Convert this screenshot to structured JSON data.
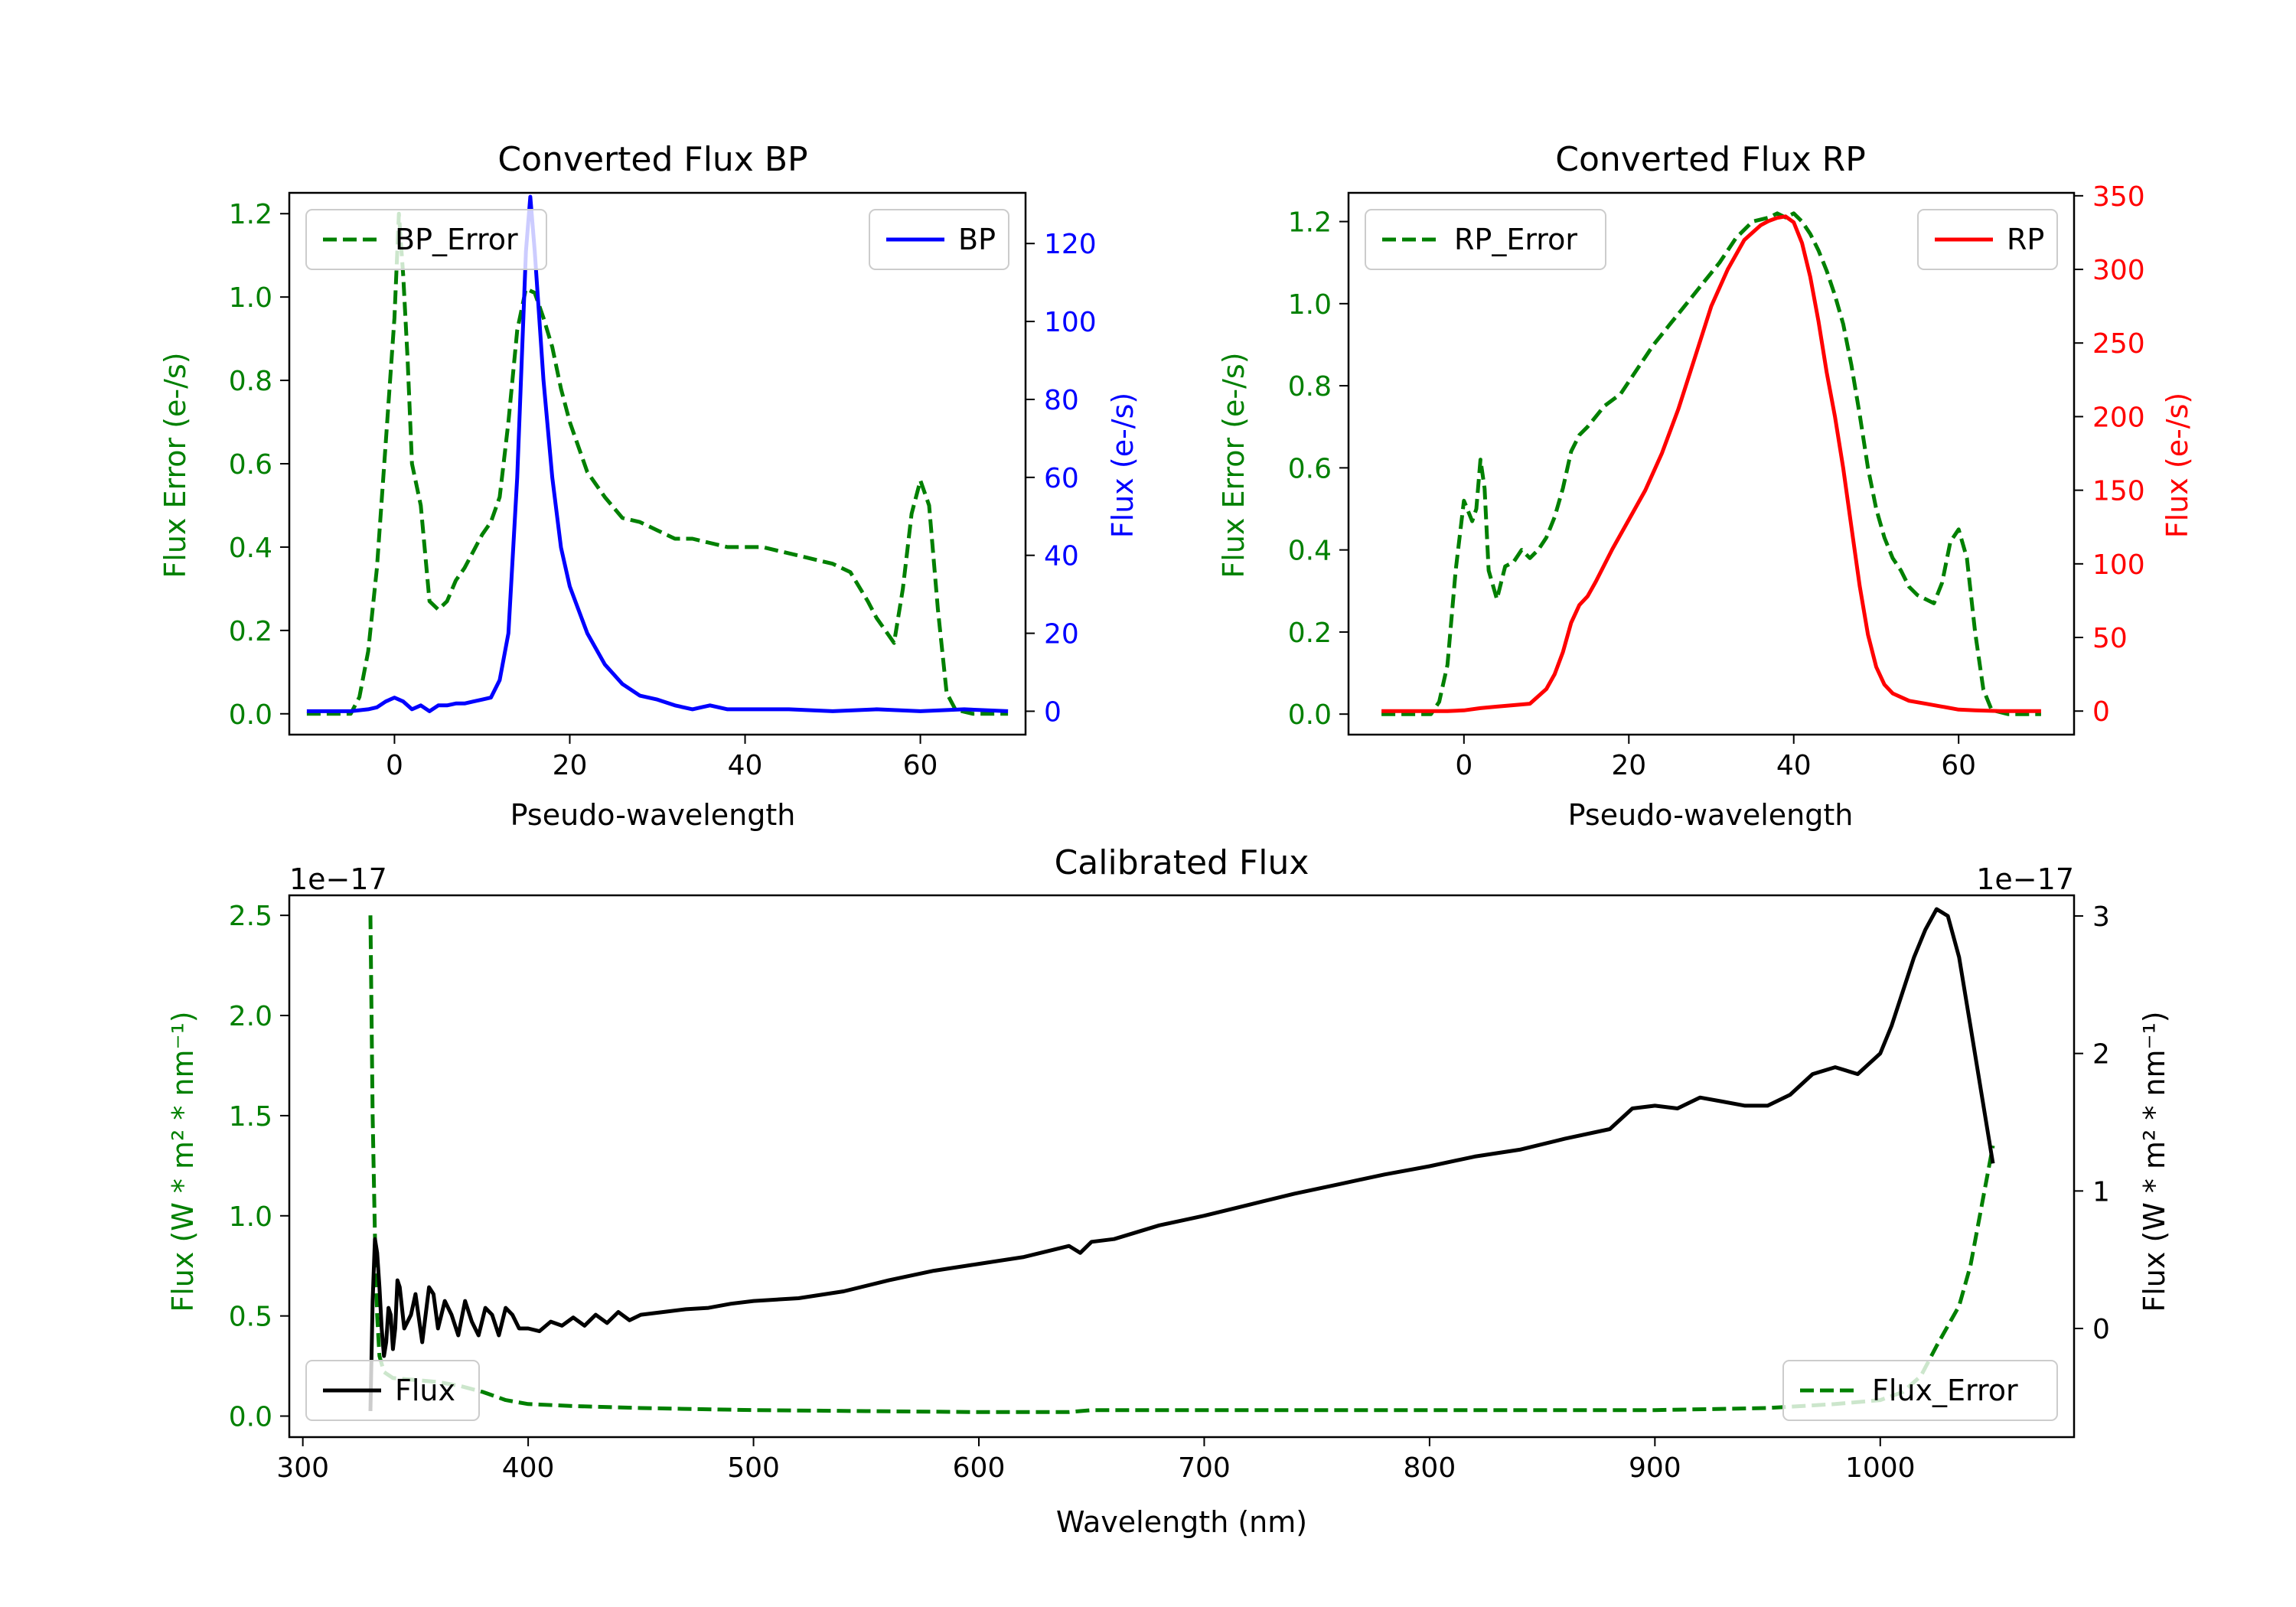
{
  "colors": {
    "green": "#008000",
    "blue": "#0000ff",
    "red": "#ff0000",
    "black": "#000000"
  },
  "chart_data": [
    {
      "type": "line",
      "title": "Converted Flux BP",
      "xlabel": "Pseudo-wavelength",
      "ylabel_left": "Flux Error (e-/s)",
      "ylabel_right": "Flux (e-/s)",
      "xlim": [
        -12,
        72
      ],
      "ylim_left": [
        -0.05,
        1.25
      ],
      "ylim_right": [
        -6,
        133
      ],
      "xticks": [
        "0",
        "20",
        "40",
        "60"
      ],
      "yticks_left": [
        "0.0",
        "0.2",
        "0.4",
        "0.6",
        "0.8",
        "1.0",
        "1.2"
      ],
      "yticks_right": [
        "0",
        "20",
        "40",
        "60",
        "80",
        "100",
        "120"
      ],
      "series": [
        {
          "name": "BP_Error",
          "axis": "left",
          "style": "dashed",
          "color": "#008000",
          "x": [
            -10,
            -5,
            -4,
            -3,
            -2,
            -1,
            0,
            0.5,
            1,
            1.5,
            2,
            3,
            4,
            5,
            6,
            7,
            8,
            9,
            10,
            11,
            12,
            13,
            14,
            15,
            16,
            17,
            18,
            19,
            20,
            22,
            24,
            26,
            28,
            30,
            32,
            34,
            36,
            38,
            40,
            42,
            44,
            46,
            48,
            50,
            52,
            54,
            55,
            56,
            57,
            58,
            59,
            60,
            61,
            62,
            63,
            64,
            66,
            70
          ],
          "values": [
            0.0,
            0.0,
            0.04,
            0.15,
            0.35,
            0.65,
            0.95,
            1.2,
            1.05,
            0.85,
            0.6,
            0.5,
            0.27,
            0.25,
            0.27,
            0.32,
            0.35,
            0.39,
            0.43,
            0.46,
            0.52,
            0.7,
            0.92,
            1.02,
            1.01,
            0.95,
            0.88,
            0.78,
            0.7,
            0.58,
            0.52,
            0.47,
            0.46,
            0.44,
            0.42,
            0.42,
            0.41,
            0.4,
            0.4,
            0.4,
            0.39,
            0.38,
            0.37,
            0.36,
            0.34,
            0.27,
            0.23,
            0.2,
            0.17,
            0.3,
            0.48,
            0.56,
            0.5,
            0.25,
            0.05,
            0.01,
            0.0,
            0.0
          ]
        },
        {
          "name": "BP",
          "axis": "right",
          "style": "solid",
          "color": "#0000ff",
          "x": [
            -10,
            -5,
            -3,
            -2,
            -1,
            0,
            1,
            2,
            3,
            4,
            5,
            6,
            7,
            8,
            9,
            10,
            11,
            12,
            13,
            14,
            15,
            15.5,
            16,
            17,
            18,
            19,
            20,
            22,
            24,
            26,
            28,
            30,
            32,
            34,
            35,
            36,
            38,
            40,
            45,
            50,
            55,
            60,
            65,
            70
          ],
          "values": [
            0,
            0,
            0.5,
            1,
            2.5,
            3.5,
            2.5,
            0.5,
            1.5,
            0,
            1.5,
            1.5,
            2,
            2,
            2.5,
            3,
            3.5,
            8,
            20,
            60,
            118,
            132,
            118,
            85,
            60,
            42,
            32,
            20,
            12,
            7,
            4,
            3,
            1.5,
            0.5,
            1,
            1.5,
            0.5,
            0.5,
            0.5,
            0,
            0.5,
            0,
            0.5,
            0
          ]
        }
      ],
      "legend": [
        {
          "label": "BP_Error",
          "loc": "upper-left"
        },
        {
          "label": "BP",
          "loc": "upper-right"
        }
      ]
    },
    {
      "type": "line",
      "title": "Converted Flux RP",
      "xlabel": "Pseudo-wavelength",
      "ylabel_left": "Flux Error (e-/s)",
      "ylabel_right": "Flux (e-/s)",
      "xlim": [
        -14,
        74
      ],
      "ylim_left": [
        -0.05,
        1.27
      ],
      "ylim_right": [
        -16,
        352
      ],
      "xticks": [
        "0",
        "20",
        "40",
        "60"
      ],
      "yticks_left": [
        "0.0",
        "0.2",
        "0.4",
        "0.6",
        "0.8",
        "1.0",
        "1.2"
      ],
      "yticks_right": [
        "0",
        "50",
        "100",
        "150",
        "200",
        "250",
        "300",
        "350"
      ],
      "series": [
        {
          "name": "RP_Error",
          "axis": "left",
          "style": "dashed",
          "color": "#008000",
          "x": [
            -10,
            -4,
            -3,
            -2,
            -1,
            0,
            1,
            1.5,
            2,
            2.5,
            3,
            4,
            5,
            6,
            7,
            8,
            9,
            10,
            11,
            12,
            13,
            14,
            15,
            17,
            19,
            21,
            23,
            25,
            27,
            29,
            31,
            33,
            35,
            37,
            38,
            39,
            40,
            41,
            42,
            43,
            44,
            45,
            46,
            47,
            48,
            49,
            50,
            51,
            52,
            53,
            54,
            55,
            56,
            57,
            58,
            59,
            60,
            61,
            62,
            63,
            64,
            66,
            70
          ],
          "values": [
            0.0,
            0.0,
            0.03,
            0.12,
            0.35,
            0.52,
            0.47,
            0.5,
            0.62,
            0.55,
            0.35,
            0.28,
            0.36,
            0.37,
            0.4,
            0.38,
            0.4,
            0.43,
            0.48,
            0.55,
            0.64,
            0.68,
            0.7,
            0.75,
            0.78,
            0.84,
            0.9,
            0.95,
            1.0,
            1.05,
            1.1,
            1.16,
            1.2,
            1.21,
            1.22,
            1.21,
            1.22,
            1.2,
            1.17,
            1.13,
            1.08,
            1.02,
            0.95,
            0.85,
            0.73,
            0.6,
            0.5,
            0.43,
            0.38,
            0.35,
            0.31,
            0.29,
            0.28,
            0.27,
            0.32,
            0.42,
            0.45,
            0.38,
            0.2,
            0.06,
            0.01,
            0.0,
            0.0
          ]
        },
        {
          "name": "RP",
          "axis": "right",
          "style": "solid",
          "color": "#ff0000",
          "x": [
            -10,
            -2,
            0,
            2,
            4,
            6,
            8,
            10,
            11,
            12,
            13,
            14,
            15,
            16,
            18,
            20,
            22,
            24,
            26,
            28,
            30,
            32,
            34,
            36,
            37,
            38,
            39,
            40,
            41,
            42,
            43,
            44,
            45,
            46,
            47,
            48,
            49,
            50,
            51,
            52,
            54,
            56,
            58,
            60,
            62,
            65,
            70
          ],
          "values": [
            0,
            0,
            0.5,
            2,
            3,
            4,
            5,
            15,
            25,
            40,
            60,
            72,
            78,
            88,
            110,
            130,
            150,
            175,
            205,
            240,
            275,
            300,
            320,
            330,
            333,
            335,
            336,
            332,
            318,
            295,
            265,
            230,
            200,
            165,
            125,
            85,
            52,
            30,
            18,
            12,
            7,
            5,
            3,
            1,
            0.5,
            0,
            0
          ]
        }
      ],
      "legend": [
        {
          "label": "RP_Error",
          "loc": "upper-left"
        },
        {
          "label": "RP",
          "loc": "upper-right"
        }
      ]
    },
    {
      "type": "line",
      "title": "Calibrated Flux",
      "xlabel": "Wavelength (nm)",
      "ylabel_left": "Flux (W * m² * nm⁻¹)",
      "ylabel_right": "Flux (W * m² * nm⁻¹)",
      "xlim": [
        294,
        1086
      ],
      "ylim_left": [
        -0.105,
        2.6
      ],
      "ylim_right": [
        -0.79,
        3.15
      ],
      "left_offset_label": "1e−17",
      "right_offset_label": "1e−17",
      "xticks": [
        "300",
        "400",
        "500",
        "600",
        "700",
        "800",
        "900",
        "1000"
      ],
      "yticks_left": [
        "0.0",
        "0.5",
        "1.0",
        "1.5",
        "2.0",
        "2.5"
      ],
      "yticks_right": [
        "0",
        "1",
        "2",
        "3"
      ],
      "series": [
        {
          "name": "Flux_Error",
          "axis": "left",
          "style": "dashed",
          "color": "#008000",
          "x": [
            330,
            331,
            332,
            333,
            334,
            336,
            340,
            350,
            360,
            370,
            380,
            390,
            400,
            420,
            450,
            500,
            550,
            600,
            640,
            650,
            700,
            800,
            900,
            950,
            980,
            1000,
            1010,
            1018,
            1025,
            1030,
            1035,
            1040,
            1045,
            1050
          ],
          "values": [
            2.5,
            1.5,
            0.9,
            0.5,
            0.3,
            0.22,
            0.19,
            0.18,
            0.17,
            0.15,
            0.12,
            0.08,
            0.06,
            0.05,
            0.04,
            0.03,
            0.025,
            0.02,
            0.02,
            0.03,
            0.03,
            0.03,
            0.03,
            0.04,
            0.06,
            0.08,
            0.12,
            0.2,
            0.35,
            0.45,
            0.55,
            0.75,
            1.05,
            1.35
          ]
        },
        {
          "name": "Flux",
          "axis": "right",
          "style": "solid",
          "color": "#000000",
          "x": [
            330,
            331,
            332,
            333,
            334,
            335,
            336,
            337,
            338,
            339,
            340,
            341,
            342,
            343,
            345,
            348,
            350,
            353,
            356,
            358,
            360,
            363,
            366,
            369,
            372,
            375,
            378,
            381,
            384,
            387,
            390,
            393,
            396,
            400,
            405,
            410,
            415,
            420,
            425,
            430,
            435,
            440,
            445,
            450,
            460,
            470,
            480,
            490,
            500,
            520,
            540,
            560,
            580,
            600,
            620,
            640,
            645,
            650,
            660,
            680,
            700,
            720,
            740,
            760,
            780,
            800,
            820,
            840,
            860,
            880,
            890,
            900,
            910,
            920,
            930,
            940,
            950,
            960,
            970,
            980,
            990,
            1000,
            1005,
            1010,
            1015,
            1020,
            1025,
            1030,
            1035,
            1040,
            1045,
            1050
          ],
          "values": [
            -0.6,
            0.2,
            0.65,
            0.55,
            0.3,
            0.0,
            -0.2,
            -0.1,
            0.15,
            0.1,
            -0.15,
            0.0,
            0.35,
            0.3,
            0.0,
            0.1,
            0.25,
            -0.1,
            0.3,
            0.25,
            0.0,
            0.2,
            0.1,
            -0.05,
            0.2,
            0.05,
            -0.05,
            0.15,
            0.1,
            -0.05,
            0.15,
            0.1,
            0.0,
            0.0,
            -0.02,
            0.05,
            0.02,
            0.08,
            0.02,
            0.1,
            0.04,
            0.12,
            0.06,
            0.1,
            0.12,
            0.14,
            0.15,
            0.18,
            0.2,
            0.22,
            0.27,
            0.35,
            0.42,
            0.47,
            0.52,
            0.6,
            0.55,
            0.63,
            0.65,
            0.75,
            0.82,
            0.9,
            0.98,
            1.05,
            1.12,
            1.18,
            1.25,
            1.3,
            1.38,
            1.45,
            1.6,
            1.62,
            1.6,
            1.68,
            1.65,
            1.62,
            1.62,
            1.7,
            1.85,
            1.9,
            1.85,
            2.0,
            2.2,
            2.45,
            2.7,
            2.9,
            3.05,
            3.0,
            2.7,
            2.2,
            1.7,
            1.2
          ]
        }
      ],
      "legend": [
        {
          "label": "Flux",
          "loc": "lower-left"
        },
        {
          "label": "Flux_Error",
          "loc": "lower-right"
        }
      ]
    }
  ]
}
